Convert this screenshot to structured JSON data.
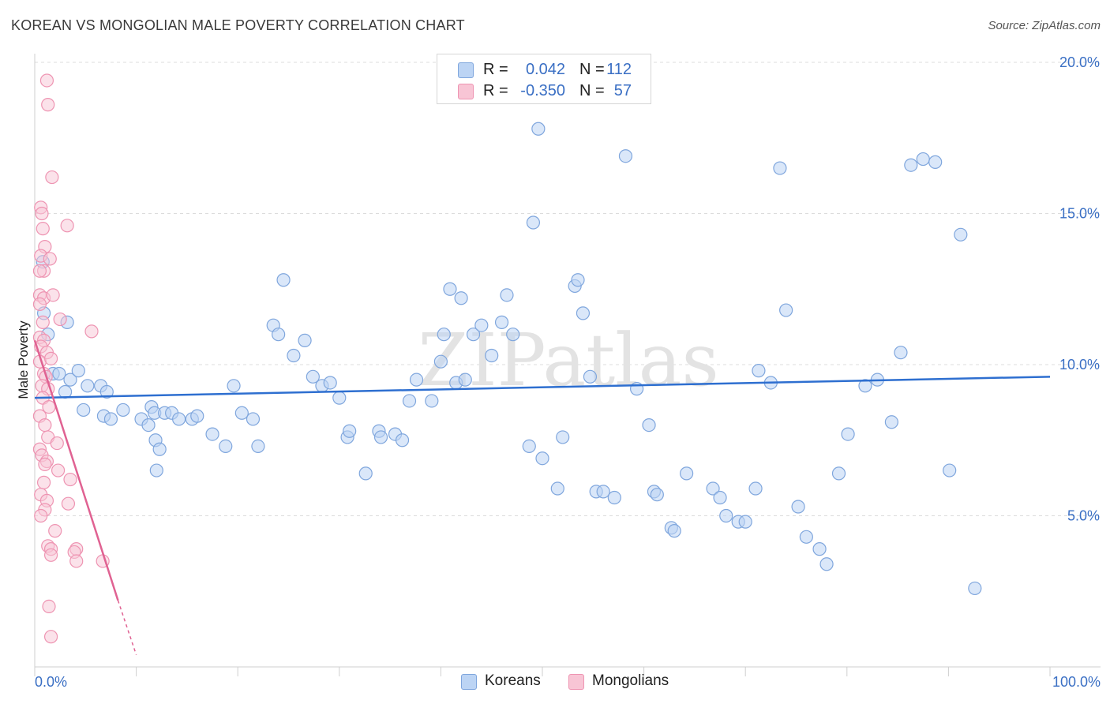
{
  "title": "KOREAN VS MONGOLIAN MALE POVERTY CORRELATION CHART",
  "source": "Source: ZipAtlas.com",
  "watermark": "ZIPatlas",
  "colors": {
    "korean_fill": "#bcd4f4",
    "korean_stroke": "#7fa6dd",
    "korean_line": "#2e6fd0",
    "mongolian_fill": "#f8c5d5",
    "mongolian_stroke": "#ee94b2",
    "mongolian_line": "#e06292",
    "label_blue": "#3a6fc4"
  },
  "legend": {
    "rows": [
      {
        "r_label": "R =",
        "r_value": "0.042",
        "n_label": "N =",
        "n_value": "112"
      },
      {
        "r_label": "R =",
        "r_value": "-0.350",
        "n_label": "N =",
        "n_value": "57"
      }
    ]
  },
  "bottom_legend": {
    "koreans": "Koreans",
    "mongolians": "Mongolians"
  },
  "chart_data": {
    "type": "scatter",
    "title": "KOREAN VS MONGOLIAN MALE POVERTY CORRELATION CHART",
    "xlabel": "",
    "ylabel": "Male Poverty",
    "xlim": [
      0,
      100
    ],
    "ylim": [
      0,
      20
    ],
    "x_tick_labels": {
      "min": "0.0%",
      "max": "100.0%"
    },
    "y_ticks": [
      5,
      10,
      15,
      20
    ],
    "y_tick_labels": [
      "5.0%",
      "10.0%",
      "15.0%",
      "20.0%"
    ],
    "grid": true,
    "series": [
      {
        "name": "Koreans",
        "r": 0.042,
        "n": 112,
        "trend": {
          "x0": 0,
          "y0": 8.9,
          "x1": 100,
          "y1": 9.6
        },
        "points": [
          [
            0.8,
            13.4
          ],
          [
            0.9,
            11.7
          ],
          [
            1.3,
            11.0
          ],
          [
            3.2,
            11.4
          ],
          [
            1.8,
            9.7
          ],
          [
            2.4,
            9.7
          ],
          [
            3.0,
            9.1
          ],
          [
            3.5,
            9.5
          ],
          [
            4.3,
            9.8
          ],
          [
            5.2,
            9.3
          ],
          [
            6.5,
            9.3
          ],
          [
            7.1,
            9.1
          ],
          [
            4.8,
            8.5
          ],
          [
            6.8,
            8.3
          ],
          [
            7.5,
            8.2
          ],
          [
            8.7,
            8.5
          ],
          [
            10.5,
            8.2
          ],
          [
            11.2,
            8.0
          ],
          [
            11.5,
            8.6
          ],
          [
            11.8,
            8.4
          ],
          [
            11.9,
            7.5
          ],
          [
            12.0,
            6.5
          ],
          [
            12.3,
            7.2
          ],
          [
            12.8,
            8.4
          ],
          [
            13.5,
            8.4
          ],
          [
            14.2,
            8.2
          ],
          [
            15.5,
            8.2
          ],
          [
            16.0,
            8.3
          ],
          [
            17.5,
            7.7
          ],
          [
            18.8,
            7.3
          ],
          [
            19.6,
            9.3
          ],
          [
            20.4,
            8.4
          ],
          [
            21.5,
            8.2
          ],
          [
            22.0,
            7.3
          ],
          [
            23.5,
            11.3
          ],
          [
            24.0,
            11.0
          ],
          [
            24.5,
            12.8
          ],
          [
            25.5,
            10.3
          ],
          [
            26.6,
            10.8
          ],
          [
            27.4,
            9.6
          ],
          [
            28.3,
            9.3
          ],
          [
            29.1,
            9.4
          ],
          [
            30.0,
            8.9
          ],
          [
            30.8,
            7.6
          ],
          [
            31.0,
            7.8
          ],
          [
            32.6,
            6.4
          ],
          [
            33.9,
            7.8
          ],
          [
            34.1,
            7.6
          ],
          [
            35.5,
            7.7
          ],
          [
            36.2,
            7.5
          ],
          [
            36.9,
            8.8
          ],
          [
            37.6,
            9.5
          ],
          [
            39.1,
            8.8
          ],
          [
            40.0,
            10.1
          ],
          [
            40.3,
            11.0
          ],
          [
            40.9,
            12.5
          ],
          [
            41.5,
            9.4
          ],
          [
            42.0,
            12.2
          ],
          [
            42.4,
            9.5
          ],
          [
            43.2,
            11.0
          ],
          [
            44.0,
            11.3
          ],
          [
            45.0,
            10.3
          ],
          [
            46.0,
            11.4
          ],
          [
            46.5,
            12.3
          ],
          [
            47.1,
            11.0
          ],
          [
            48.7,
            7.3
          ],
          [
            49.1,
            14.7
          ],
          [
            49.6,
            17.8
          ],
          [
            50.0,
            6.9
          ],
          [
            51.5,
            5.9
          ],
          [
            52.0,
            7.6
          ],
          [
            53.2,
            12.6
          ],
          [
            53.5,
            12.8
          ],
          [
            54.0,
            11.7
          ],
          [
            54.7,
            9.6
          ],
          [
            55.3,
            5.8
          ],
          [
            56.0,
            5.8
          ],
          [
            57.1,
            5.6
          ],
          [
            58.2,
            16.9
          ],
          [
            59.3,
            9.2
          ],
          [
            60.5,
            8.0
          ],
          [
            61.0,
            5.8
          ],
          [
            61.3,
            5.7
          ],
          [
            62.7,
            4.6
          ],
          [
            63.0,
            4.5
          ],
          [
            64.2,
            6.4
          ],
          [
            66.8,
            5.9
          ],
          [
            67.5,
            5.6
          ],
          [
            68.1,
            5.0
          ],
          [
            69.3,
            4.8
          ],
          [
            70.0,
            4.8
          ],
          [
            71.0,
            5.9
          ],
          [
            71.3,
            9.8
          ],
          [
            72.5,
            9.4
          ],
          [
            73.4,
            16.5
          ],
          [
            74.0,
            11.8
          ],
          [
            75.2,
            5.3
          ],
          [
            76.0,
            4.3
          ],
          [
            77.3,
            3.9
          ],
          [
            78.0,
            3.4
          ],
          [
            79.2,
            6.4
          ],
          [
            80.1,
            7.7
          ],
          [
            81.8,
            9.3
          ],
          [
            83.0,
            9.5
          ],
          [
            84.4,
            8.1
          ],
          [
            85.3,
            10.4
          ],
          [
            86.3,
            16.6
          ],
          [
            87.5,
            16.8
          ],
          [
            88.7,
            16.7
          ],
          [
            90.1,
            6.5
          ],
          [
            91.2,
            14.3
          ],
          [
            92.6,
            2.6
          ]
        ]
      },
      {
        "name": "Mongolians",
        "r": -0.35,
        "n": 57,
        "trend": {
          "x0": 0,
          "y0": 10.8,
          "x1": 8.2,
          "y1": 2.2,
          "dashed_to": {
            "x": 10,
            "y": 0.4
          }
        },
        "points": [
          [
            1.2,
            19.4
          ],
          [
            1.3,
            18.6
          ],
          [
            1.7,
            16.2
          ],
          [
            0.6,
            15.2
          ],
          [
            0.7,
            15.0
          ],
          [
            3.2,
            14.6
          ],
          [
            0.8,
            14.5
          ],
          [
            1.0,
            13.9
          ],
          [
            0.6,
            13.6
          ],
          [
            1.5,
            13.5
          ],
          [
            0.9,
            13.1
          ],
          [
            0.5,
            12.3
          ],
          [
            0.9,
            12.2
          ],
          [
            1.8,
            12.3
          ],
          [
            0.5,
            12.0
          ],
          [
            2.5,
            11.5
          ],
          [
            0.8,
            11.4
          ],
          [
            5.6,
            11.1
          ],
          [
            0.5,
            10.9
          ],
          [
            0.9,
            10.8
          ],
          [
            0.6,
            10.6
          ],
          [
            1.2,
            10.4
          ],
          [
            0.5,
            10.1
          ],
          [
            1.6,
            10.2
          ],
          [
            0.9,
            9.7
          ],
          [
            1.1,
            9.6
          ],
          [
            0.7,
            9.3
          ],
          [
            1.3,
            9.2
          ],
          [
            0.8,
            8.9
          ],
          [
            1.4,
            8.6
          ],
          [
            0.5,
            8.3
          ],
          [
            1.0,
            8.0
          ],
          [
            1.3,
            7.6
          ],
          [
            2.2,
            7.4
          ],
          [
            0.5,
            7.2
          ],
          [
            0.7,
            7.0
          ],
          [
            1.2,
            6.8
          ],
          [
            1.0,
            6.7
          ],
          [
            2.3,
            6.5
          ],
          [
            0.9,
            6.1
          ],
          [
            3.5,
            6.2
          ],
          [
            0.6,
            5.7
          ],
          [
            1.2,
            5.5
          ],
          [
            3.3,
            5.4
          ],
          [
            1.0,
            5.2
          ],
          [
            0.6,
            5.0
          ],
          [
            2.0,
            4.5
          ],
          [
            1.3,
            4.0
          ],
          [
            1.6,
            3.9
          ],
          [
            4.1,
            3.9
          ],
          [
            3.9,
            3.8
          ],
          [
            1.6,
            3.7
          ],
          [
            4.1,
            3.5
          ],
          [
            6.7,
            3.5
          ],
          [
            1.4,
            2.0
          ],
          [
            1.6,
            1.0
          ],
          [
            0.5,
            13.1
          ]
        ]
      }
    ]
  }
}
